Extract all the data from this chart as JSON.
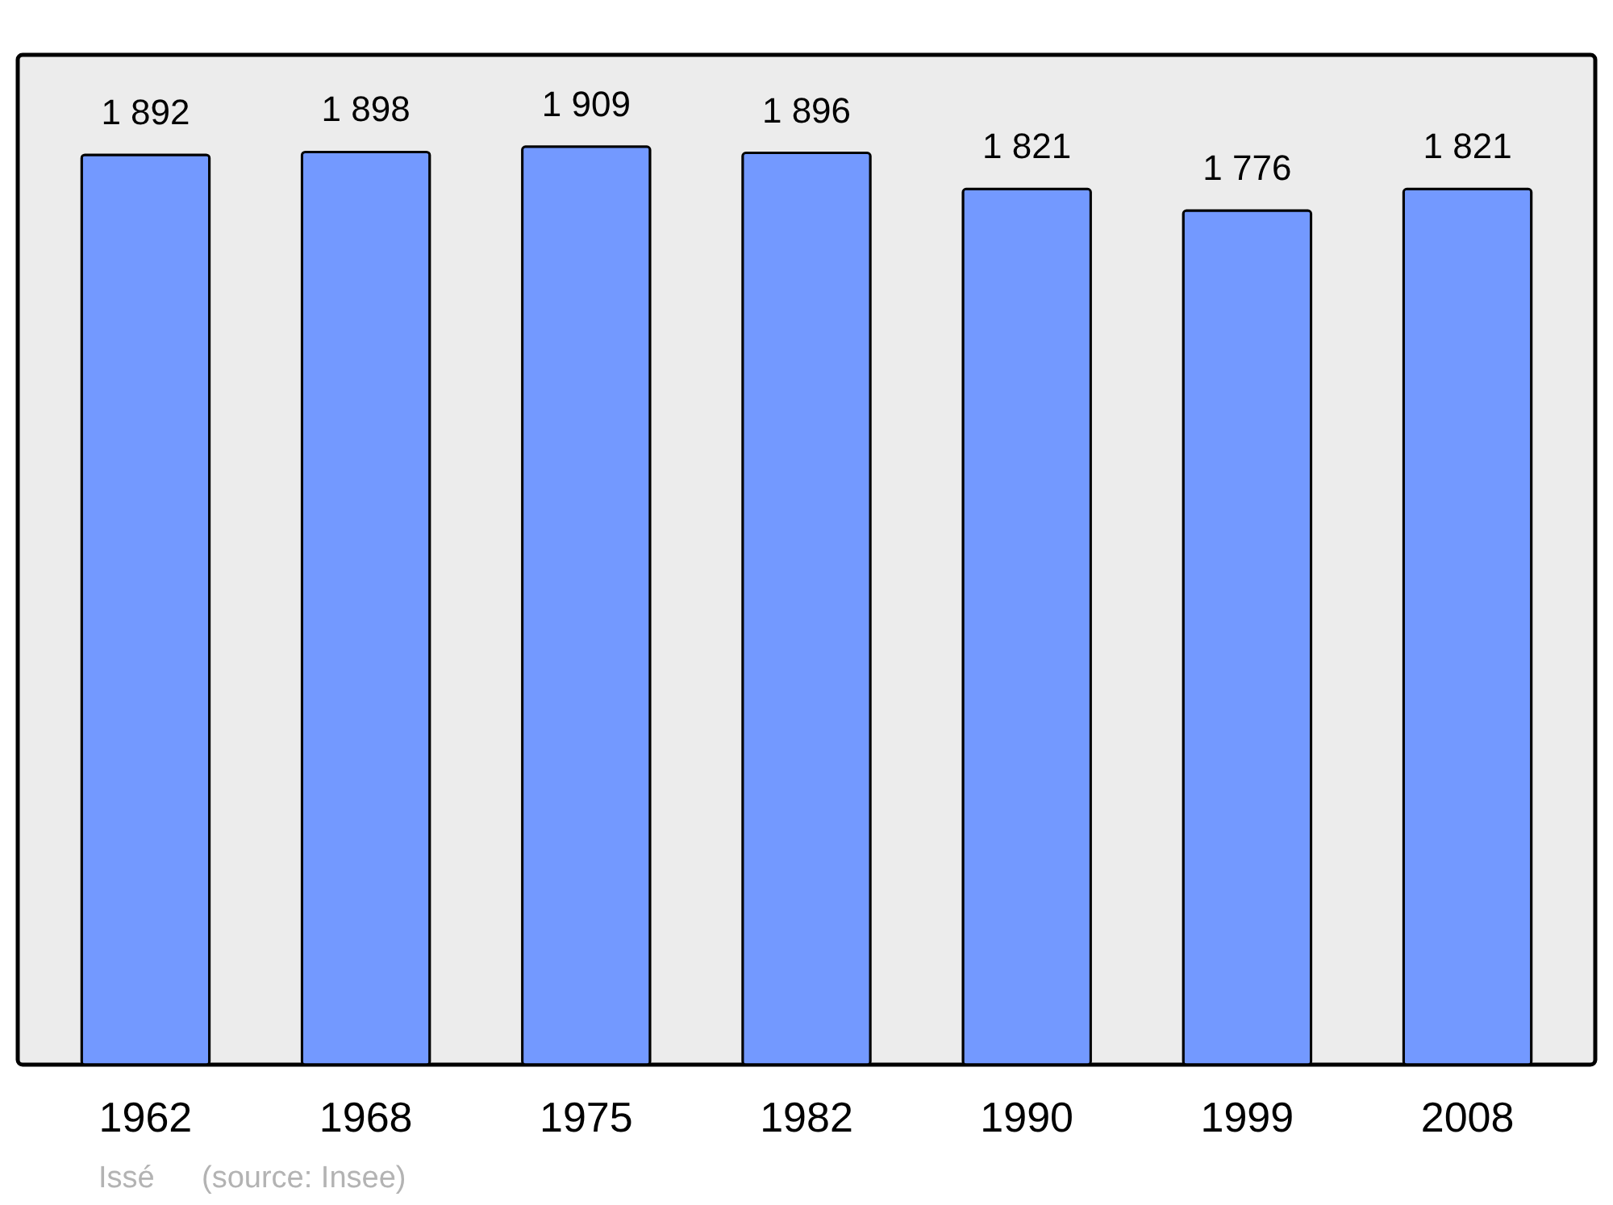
{
  "chart_data": {
    "type": "bar",
    "categories": [
      "1962",
      "1968",
      "1975",
      "1982",
      "1990",
      "1999",
      "2008"
    ],
    "values": [
      1892,
      1898,
      1909,
      1896,
      1821,
      1776,
      1821
    ],
    "color": "#7399ff",
    "data_labels": true,
    "grid": false,
    "annotations": [
      "Issé",
      "(source: Insee)"
    ]
  }
}
